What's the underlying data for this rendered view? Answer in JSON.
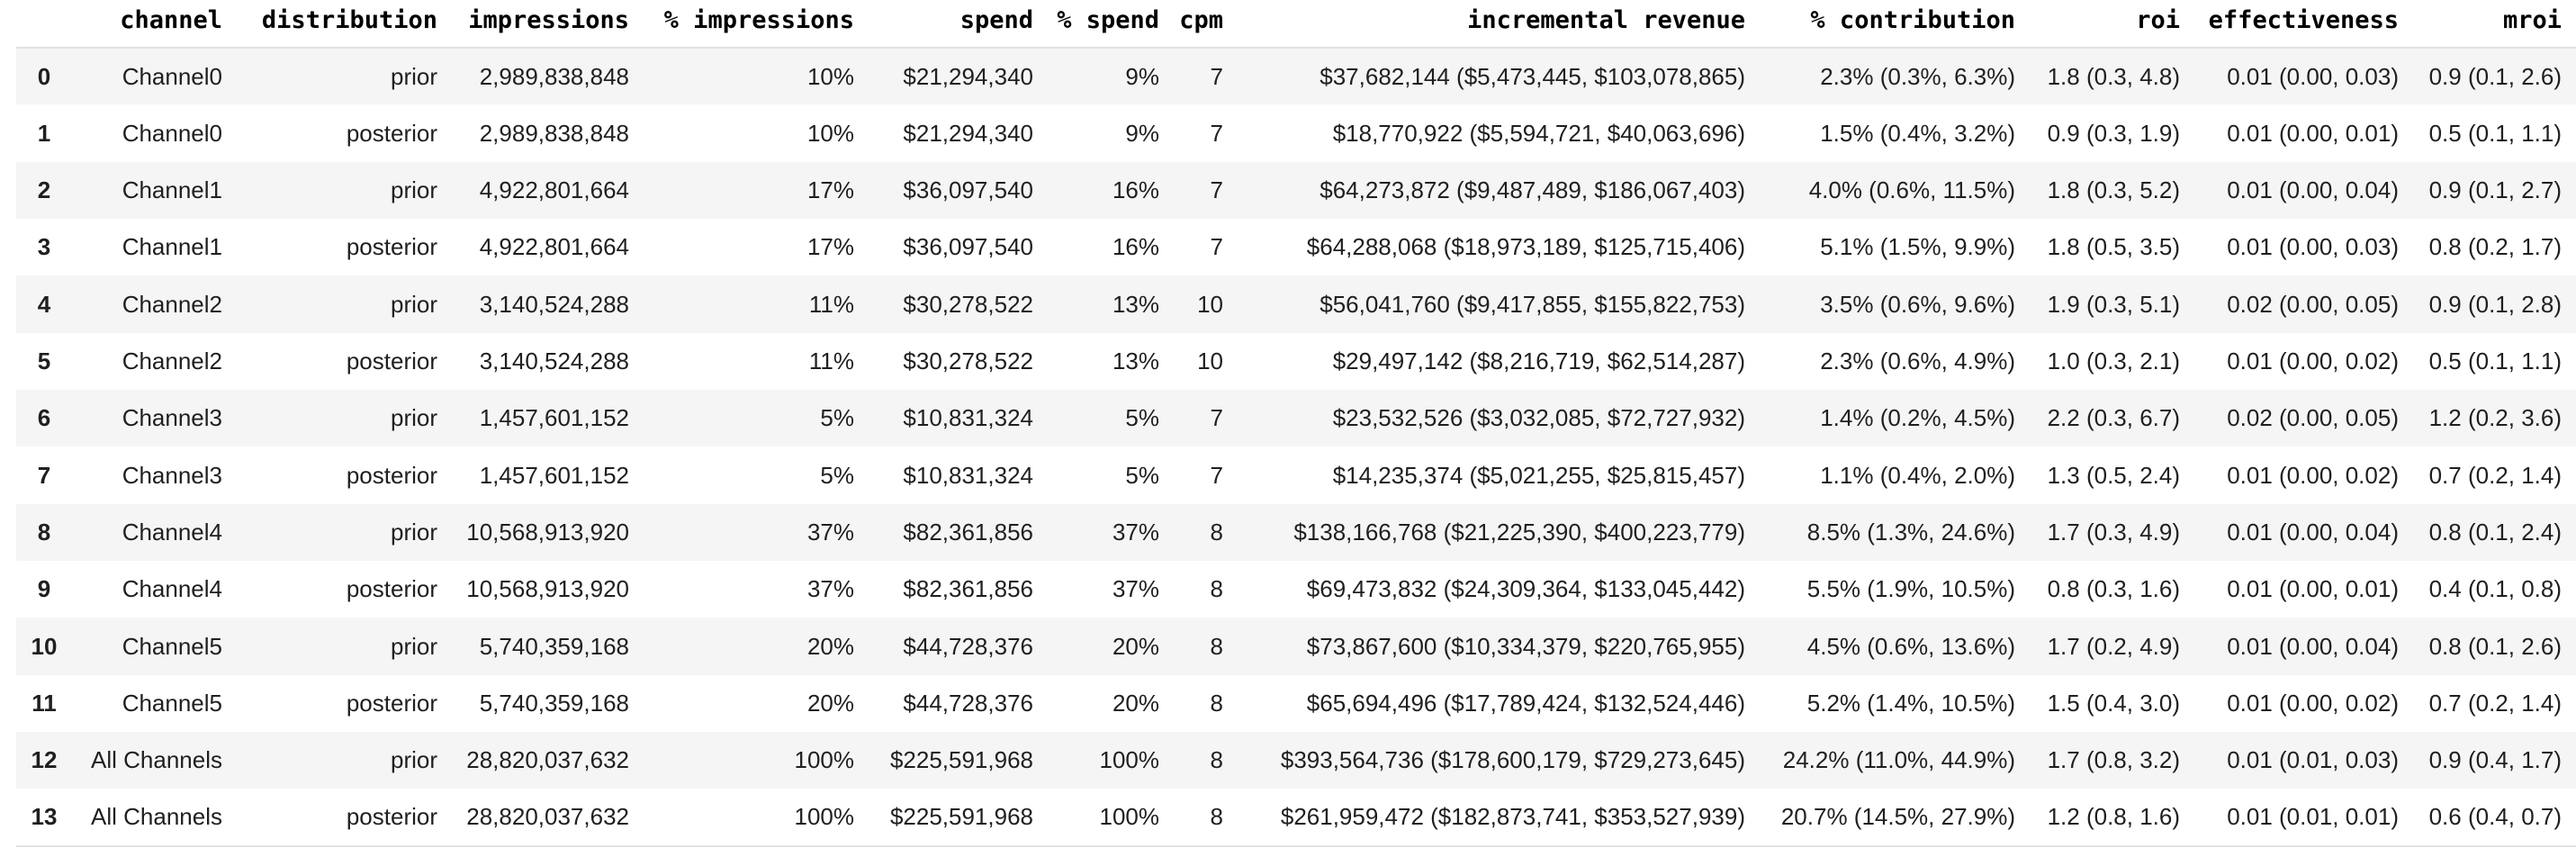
{
  "theme": {
    "stripe_color": "#f5f5f5",
    "border_color": "#e1e1e1",
    "text_color": "#1f1f1f",
    "header_color": "#000000",
    "background_color": "#ffffff"
  },
  "table": {
    "index_header": "",
    "columns": [
      "channel",
      "distribution",
      "impressions",
      "% impressions",
      "spend",
      "% spend",
      "cpm",
      "incremental revenue",
      "% contribution",
      "roi",
      "effectiveness",
      "mroi"
    ],
    "rows": [
      {
        "index": "0",
        "cells": [
          "Channel0",
          "prior",
          "2,989,838,848",
          "10%",
          "$21,294,340",
          "9%",
          "7",
          "$37,682,144 ($5,473,445, $103,078,865)",
          "2.3% (0.3%, 6.3%)",
          "1.8 (0.3, 4.8)",
          "0.01 (0.00, 0.03)",
          "0.9 (0.1, 2.6)"
        ]
      },
      {
        "index": "1",
        "cells": [
          "Channel0",
          "posterior",
          "2,989,838,848",
          "10%",
          "$21,294,340",
          "9%",
          "7",
          "$18,770,922 ($5,594,721, $40,063,696)",
          "1.5% (0.4%, 3.2%)",
          "0.9 (0.3, 1.9)",
          "0.01 (0.00, 0.01)",
          "0.5 (0.1, 1.1)"
        ]
      },
      {
        "index": "2",
        "cells": [
          "Channel1",
          "prior",
          "4,922,801,664",
          "17%",
          "$36,097,540",
          "16%",
          "7",
          "$64,273,872 ($9,487,489, $186,067,403)",
          "4.0% (0.6%, 11.5%)",
          "1.8 (0.3, 5.2)",
          "0.01 (0.00, 0.04)",
          "0.9 (0.1, 2.7)"
        ]
      },
      {
        "index": "3",
        "cells": [
          "Channel1",
          "posterior",
          "4,922,801,664",
          "17%",
          "$36,097,540",
          "16%",
          "7",
          "$64,288,068 ($18,973,189, $125,715,406)",
          "5.1% (1.5%, 9.9%)",
          "1.8 (0.5, 3.5)",
          "0.01 (0.00, 0.03)",
          "0.8 (0.2, 1.7)"
        ]
      },
      {
        "index": "4",
        "cells": [
          "Channel2",
          "prior",
          "3,140,524,288",
          "11%",
          "$30,278,522",
          "13%",
          "10",
          "$56,041,760 ($9,417,855, $155,822,753)",
          "3.5% (0.6%, 9.6%)",
          "1.9 (0.3, 5.1)",
          "0.02 (0.00, 0.05)",
          "0.9 (0.1, 2.8)"
        ]
      },
      {
        "index": "5",
        "cells": [
          "Channel2",
          "posterior",
          "3,140,524,288",
          "11%",
          "$30,278,522",
          "13%",
          "10",
          "$29,497,142 ($8,216,719, $62,514,287)",
          "2.3% (0.6%, 4.9%)",
          "1.0 (0.3, 2.1)",
          "0.01 (0.00, 0.02)",
          "0.5 (0.1, 1.1)"
        ]
      },
      {
        "index": "6",
        "cells": [
          "Channel3",
          "prior",
          "1,457,601,152",
          "5%",
          "$10,831,324",
          "5%",
          "7",
          "$23,532,526 ($3,032,085, $72,727,932)",
          "1.4% (0.2%, 4.5%)",
          "2.2 (0.3, 6.7)",
          "0.02 (0.00, 0.05)",
          "1.2 (0.2, 3.6)"
        ]
      },
      {
        "index": "7",
        "cells": [
          "Channel3",
          "posterior",
          "1,457,601,152",
          "5%",
          "$10,831,324",
          "5%",
          "7",
          "$14,235,374 ($5,021,255, $25,815,457)",
          "1.1% (0.4%, 2.0%)",
          "1.3 (0.5, 2.4)",
          "0.01 (0.00, 0.02)",
          "0.7 (0.2, 1.4)"
        ]
      },
      {
        "index": "8",
        "cells": [
          "Channel4",
          "prior",
          "10,568,913,920",
          "37%",
          "$82,361,856",
          "37%",
          "8",
          "$138,166,768 ($21,225,390, $400,223,779)",
          "8.5% (1.3%, 24.6%)",
          "1.7 (0.3, 4.9)",
          "0.01 (0.00, 0.04)",
          "0.8 (0.1, 2.4)"
        ]
      },
      {
        "index": "9",
        "cells": [
          "Channel4",
          "posterior",
          "10,568,913,920",
          "37%",
          "$82,361,856",
          "37%",
          "8",
          "$69,473,832 ($24,309,364, $133,045,442)",
          "5.5% (1.9%, 10.5%)",
          "0.8 (0.3, 1.6)",
          "0.01 (0.00, 0.01)",
          "0.4 (0.1, 0.8)"
        ]
      },
      {
        "index": "10",
        "cells": [
          "Channel5",
          "prior",
          "5,740,359,168",
          "20%",
          "$44,728,376",
          "20%",
          "8",
          "$73,867,600 ($10,334,379, $220,765,955)",
          "4.5% (0.6%, 13.6%)",
          "1.7 (0.2, 4.9)",
          "0.01 (0.00, 0.04)",
          "0.8 (0.1, 2.6)"
        ]
      },
      {
        "index": "11",
        "cells": [
          "Channel5",
          "posterior",
          "5,740,359,168",
          "20%",
          "$44,728,376",
          "20%",
          "8",
          "$65,694,496 ($17,789,424, $132,524,446)",
          "5.2% (1.4%, 10.5%)",
          "1.5 (0.4, 3.0)",
          "0.01 (0.00, 0.02)",
          "0.7 (0.2, 1.4)"
        ]
      },
      {
        "index": "12",
        "cells": [
          "All Channels",
          "prior",
          "28,820,037,632",
          "100%",
          "$225,591,968",
          "100%",
          "8",
          "$393,564,736 ($178,600,179, $729,273,645)",
          "24.2% (11.0%, 44.9%)",
          "1.7 (0.8, 3.2)",
          "0.01 (0.01, 0.03)",
          "0.9 (0.4, 1.7)"
        ]
      },
      {
        "index": "13",
        "cells": [
          "All Channels",
          "posterior",
          "28,820,037,632",
          "100%",
          "$225,591,968",
          "100%",
          "8",
          "$261,959,472 ($182,873,741, $353,527,939)",
          "20.7% (14.5%, 27.9%)",
          "1.2 (0.8, 1.6)",
          "0.01 (0.01, 0.01)",
          "0.6 (0.4, 0.7)"
        ]
      }
    ]
  }
}
